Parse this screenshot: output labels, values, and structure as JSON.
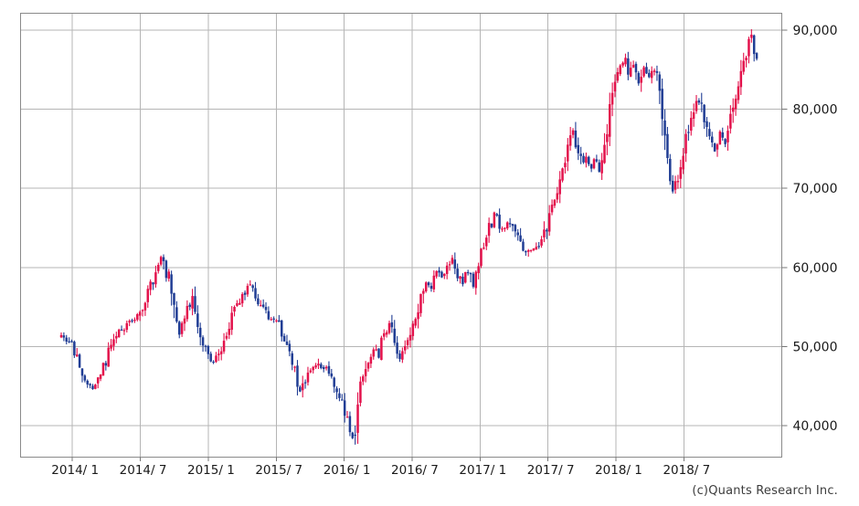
{
  "page": {
    "background": "#ffffff"
  },
  "footer": {
    "copyright": "(c)Quants Research Inc."
  },
  "chart_data": {
    "type": "candlestick",
    "period": "weekly",
    "title": "",
    "x_axis": {
      "tick_labels": [
        "2014/ 1",
        "2014/ 7",
        "2015/ 1",
        "2015/ 7",
        "2016/ 1",
        "2016/ 7",
        "2017/ 1",
        "2017/ 7",
        "2018/ 1",
        "2018/ 7"
      ]
    },
    "y_axis": {
      "tick_labels": [
        "40,000",
        "50,000",
        "60,000",
        "70,000",
        "80,000",
        "90,000"
      ],
      "tick_values": [
        40000,
        50000,
        60000,
        70000,
        80000,
        90000
      ],
      "range": [
        36100,
        92100
      ],
      "side": "right"
    },
    "legend": null,
    "grid": true,
    "colors": {
      "up": "#e3114b",
      "down": "#203d94",
      "grid": "#b5b5b5",
      "border": "#8a8a8a",
      "tick": "#777777",
      "text": "#1a1a1a"
    },
    "series_weeks": 266,
    "price_anchors_weekly": [
      [
        0,
        51200
      ],
      [
        2,
        50800
      ],
      [
        4,
        50300
      ],
      [
        6,
        48200
      ],
      [
        8,
        46000
      ],
      [
        10,
        45300
      ],
      [
        12,
        44800
      ],
      [
        14,
        45800
      ],
      [
        16,
        47300
      ],
      [
        18,
        49300
      ],
      [
        20,
        50800
      ],
      [
        22,
        51800
      ],
      [
        24,
        52400
      ],
      [
        26,
        52900
      ],
      [
        28,
        53400
      ],
      [
        30,
        54100
      ],
      [
        32,
        55600
      ],
      [
        34,
        57600
      ],
      [
        36,
        59600
      ],
      [
        38,
        61200
      ],
      [
        39,
        59800
      ],
      [
        40,
        58300
      ],
      [
        41,
        59300
      ],
      [
        43,
        55500
      ],
      [
        45,
        51800
      ],
      [
        46,
        53300
      ],
      [
        48,
        55000
      ],
      [
        50,
        55900
      ],
      [
        51,
        54000
      ],
      [
        52,
        52800
      ],
      [
        54,
        50300
      ],
      [
        56,
        48800
      ],
      [
        58,
        48200
      ],
      [
        60,
        48800
      ],
      [
        62,
        50500
      ],
      [
        64,
        52800
      ],
      [
        66,
        54600
      ],
      [
        68,
        55900
      ],
      [
        70,
        57100
      ],
      [
        71,
        57800
      ],
      [
        73,
        56900
      ],
      [
        75,
        55800
      ],
      [
        77,
        54800
      ],
      [
        79,
        53800
      ],
      [
        82,
        53200
      ],
      [
        84,
        51800
      ],
      [
        86,
        50300
      ],
      [
        88,
        47800
      ],
      [
        90,
        45300
      ],
      [
        91,
        44300
      ],
      [
        93,
        46000
      ],
      [
        95,
        47300
      ],
      [
        97,
        47900
      ],
      [
        99,
        47000
      ],
      [
        101,
        47600
      ],
      [
        103,
        46000
      ],
      [
        105,
        44500
      ],
      [
        107,
        42800
      ],
      [
        109,
        40500
      ],
      [
        111,
        38500
      ],
      [
        112,
        39800
      ],
      [
        113,
        42800
      ],
      [
        115,
        46200
      ],
      [
        117,
        48600
      ],
      [
        119,
        49900
      ],
      [
        121,
        49000
      ],
      [
        123,
        51600
      ],
      [
        125,
        52700
      ],
      [
        127,
        50800
      ],
      [
        129,
        48600
      ],
      [
        131,
        50000
      ],
      [
        133,
        51500
      ],
      [
        135,
        53600
      ],
      [
        137,
        55900
      ],
      [
        139,
        58300
      ],
      [
        141,
        57700
      ],
      [
        143,
        59700
      ],
      [
        145,
        58700
      ],
      [
        147,
        59800
      ],
      [
        149,
        61000
      ],
      [
        151,
        59200
      ],
      [
        153,
        58000
      ],
      [
        155,
        59700
      ],
      [
        157,
        57600
      ],
      [
        159,
        61000
      ],
      [
        161,
        62900
      ],
      [
        163,
        64800
      ],
      [
        165,
        67000
      ],
      [
        166,
        66000
      ],
      [
        168,
        64900
      ],
      [
        170,
        66000
      ],
      [
        172,
        64800
      ],
      [
        174,
        63900
      ],
      [
        176,
        62400
      ],
      [
        177,
        61600
      ],
      [
        179,
        62500
      ],
      [
        181,
        62200
      ],
      [
        183,
        63600
      ],
      [
        185,
        65400
      ],
      [
        187,
        67800
      ],
      [
        189,
        70200
      ],
      [
        191,
        72400
      ],
      [
        193,
        74800
      ],
      [
        195,
        77000
      ],
      [
        197,
        74600
      ],
      [
        199,
        72900
      ],
      [
        200,
        74200
      ],
      [
        202,
        72700
      ],
      [
        204,
        73900
      ],
      [
        205,
        72500
      ],
      [
        207,
        76200
      ],
      [
        209,
        79600
      ],
      [
        211,
        82600
      ],
      [
        213,
        84900
      ],
      [
        215,
        86200
      ],
      [
        216,
        84100
      ],
      [
        218,
        85800
      ],
      [
        220,
        83400
      ],
      [
        222,
        85500
      ],
      [
        224,
        84200
      ],
      [
        226,
        85200
      ],
      [
        228,
        82800
      ],
      [
        230,
        77800
      ],
      [
        232,
        71800
      ],
      [
        233,
        69900
      ],
      [
        235,
        71800
      ],
      [
        237,
        74400
      ],
      [
        239,
        77300
      ],
      [
        241,
        79600
      ],
      [
        243,
        81300
      ],
      [
        245,
        78300
      ],
      [
        247,
        75900
      ],
      [
        249,
        74800
      ],
      [
        251,
        76900
      ],
      [
        253,
        75800
      ],
      [
        255,
        78900
      ],
      [
        257,
        81800
      ],
      [
        259,
        84800
      ],
      [
        261,
        87200
      ],
      [
        263,
        89100
      ],
      [
        264,
        87300
      ],
      [
        265,
        86700
      ]
    ]
  }
}
